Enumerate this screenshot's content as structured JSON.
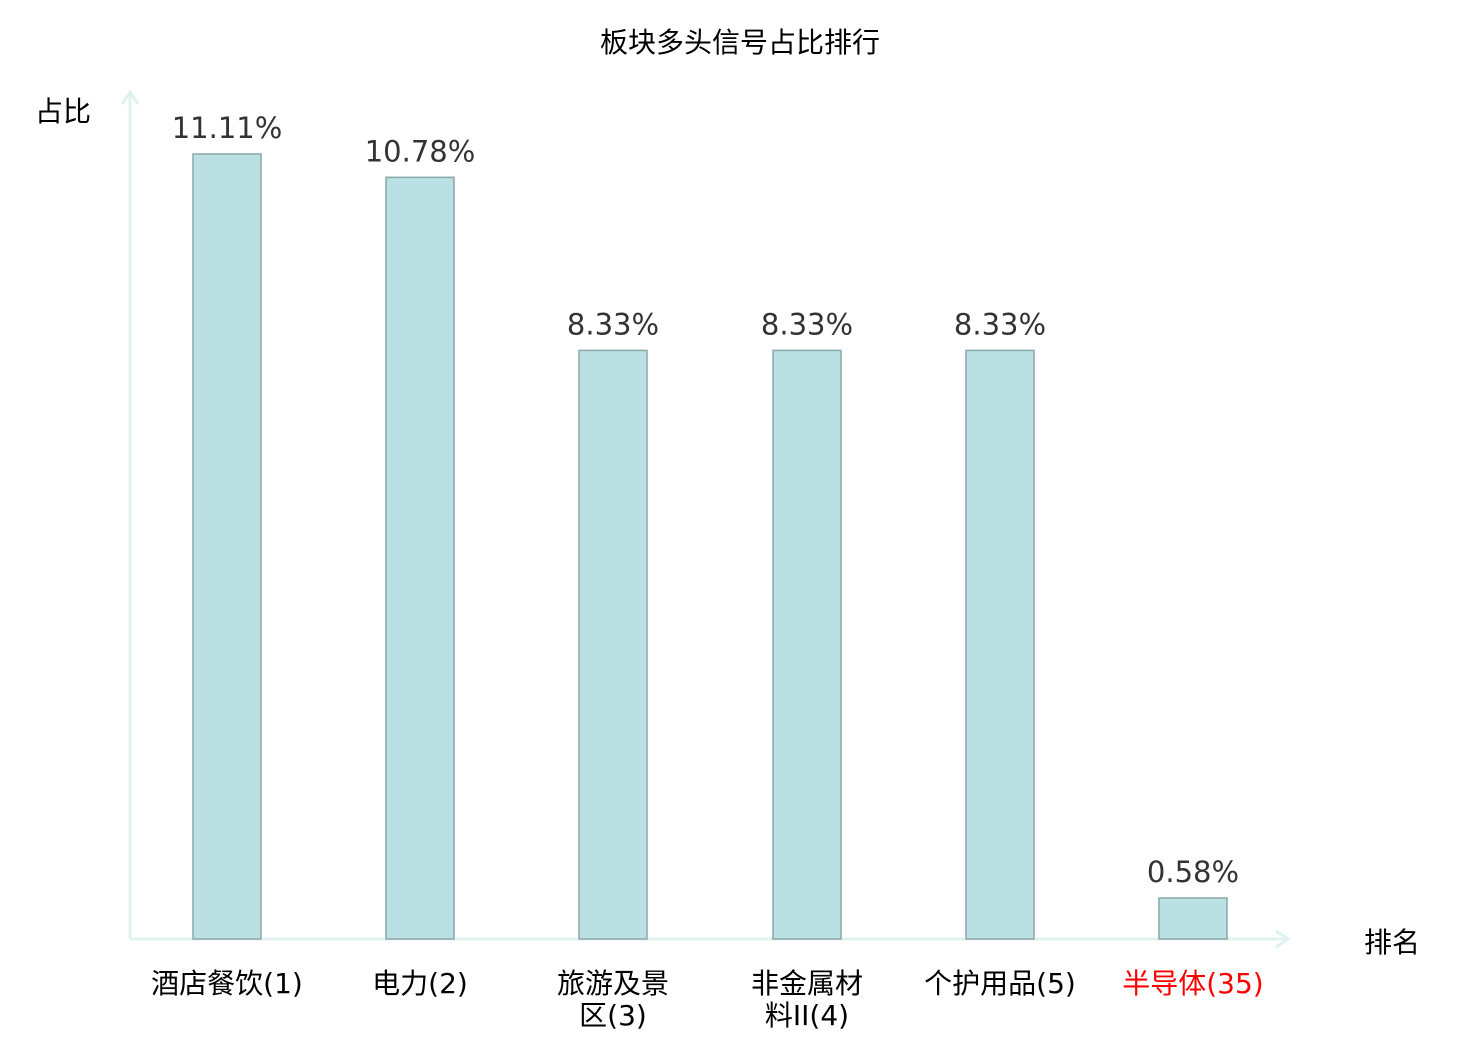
{
  "chart_data": {
    "type": "bar",
    "title": "板块多头信号占比排行",
    "ylabel": "占比",
    "xlabel": "排名",
    "ylim": [
      0,
      12
    ],
    "grid": false,
    "categories": [
      {
        "lines": [
          "酒店餐饮(1)"
        ],
        "highlight": false
      },
      {
        "lines": [
          "电力(2)"
        ],
        "highlight": false
      },
      {
        "lines": [
          "旅游及景",
          "区(3)"
        ],
        "highlight": false
      },
      {
        "lines": [
          "非金属材",
          "料II(4)"
        ],
        "highlight": false
      },
      {
        "lines": [
          "个护用品(5)"
        ],
        "highlight": false
      },
      {
        "lines": [
          "半导体(35)"
        ],
        "highlight": true
      }
    ],
    "values": [
      11.11,
      10.78,
      8.33,
      8.33,
      8.33,
      0.58
    ],
    "value_labels": [
      "11.11%",
      "10.78%",
      "8.33%",
      "8.33%",
      "8.33%",
      "0.58%"
    ],
    "colors": {
      "bar_fill": "#bbe0e3",
      "bar_stroke": "#8aa8aa",
      "axis": "#e0f2f0",
      "text": "#000000",
      "value_text": "#333333",
      "highlight": "#ff0000"
    }
  }
}
